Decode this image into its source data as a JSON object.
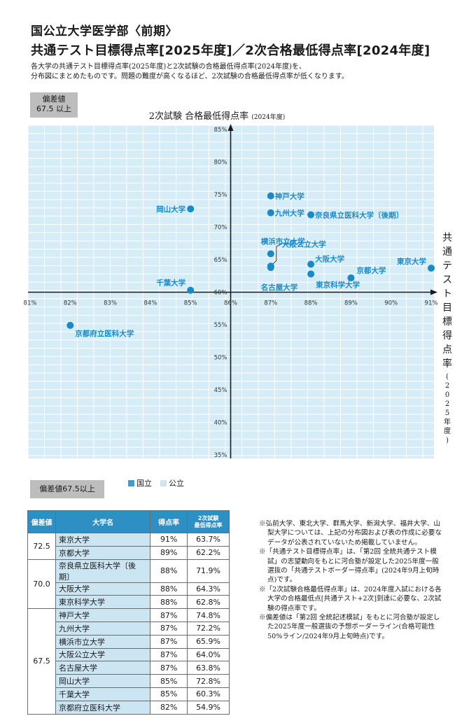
{
  "header": {
    "title1": "国公立大学医学部〈前期〉",
    "title2": "共通テスト目標得点率[2025年度]／2次合格最低得点率[2024年度]",
    "desc1": "各大学の共通テスト目標得点率(2025年度)と2次試験の合格最低得点率(2024年度)を、",
    "desc2": "分布図にまとめたものです。問題の難度が高くなるほど、2次試験の合格最低得点率が低くなります。"
  },
  "badge_top": [
    "偏差値",
    "67.5 以上"
  ],
  "badge_bottom": "偏差値67.5以上",
  "legend": {
    "national": "国立",
    "public": "公立"
  },
  "colors": {
    "accent": "#1a8ac6",
    "plot_bg": "#d6edf8",
    "grid": "#ffffff",
    "national_swatch": "#3a9fd6",
    "public_swatch": "#cce5f3",
    "table_header": "#2e8fc4"
  },
  "chart_data": {
    "type": "scatter",
    "title": "2次試験 合格最低得点率",
    "title_sub": "(2024年度)",
    "ylabel": "共通テスト目標得点率",
    "ylabel_sub": "(2025年度)",
    "xlim": [
      81,
      91
    ],
    "ylim": [
      35,
      85
    ],
    "x_ticks": [
      "81%",
      "82%",
      "83%",
      "84%",
      "85%",
      "86%",
      "87%",
      "88%",
      "89%",
      "90%",
      "91%"
    ],
    "y_ticks": [
      "85%",
      "80%",
      "75%",
      "70%",
      "65%",
      "60%",
      "55%",
      "50%",
      "45%",
      "40%",
      "35%"
    ],
    "grid": true,
    "points": [
      {
        "label": "東京大学",
        "x": 91,
        "y": 63.7
      },
      {
        "label": "京都大学",
        "x": 89,
        "y": 62.2
      },
      {
        "label": "奈良県立医科大学〔後期〕",
        "x": 88,
        "y": 71.9
      },
      {
        "label": "大阪大学",
        "x": 88,
        "y": 64.3
      },
      {
        "label": "東京科学大学",
        "x": 88,
        "y": 62.8
      },
      {
        "label": "神戸大学",
        "x": 87,
        "y": 74.8
      },
      {
        "label": "九州大学",
        "x": 87,
        "y": 72.2
      },
      {
        "label": "横浜市立大学",
        "x": 87,
        "y": 65.9
      },
      {
        "label": "大阪公立大学",
        "x": 87,
        "y": 64.0
      },
      {
        "label": "名古屋大学",
        "x": 87,
        "y": 63.8
      },
      {
        "label": "岡山大学",
        "x": 85,
        "y": 72.8
      },
      {
        "label": "千葉大学",
        "x": 85,
        "y": 60.3
      },
      {
        "label": "京都府立医科大学",
        "x": 82,
        "y": 54.9
      }
    ]
  },
  "table": {
    "headers": {
      "dev": "偏差値",
      "name": "大学名",
      "score": "得点率",
      "second1": "2次試験",
      "second2": "最低得点率"
    },
    "groups": [
      {
        "dev": "72.5",
        "rows": [
          {
            "name": "東京大学",
            "score": "91%",
            "second": "63.7%"
          },
          {
            "name": "京都大学",
            "score": "89%",
            "second": "62.2%"
          }
        ]
      },
      {
        "dev": "70.0",
        "rows": [
          {
            "name": "奈良県立医科大学〔後期〕",
            "score": "88%",
            "second": "71.9%"
          },
          {
            "name": "大阪大学",
            "score": "88%",
            "second": "64.3%"
          },
          {
            "name": "東京科学大学",
            "score": "88%",
            "second": "62.8%"
          }
        ]
      },
      {
        "dev": "67.5",
        "rows": [
          {
            "name": "神戸大学",
            "score": "87%",
            "second": "74.8%"
          },
          {
            "name": "九州大学",
            "score": "87%",
            "second": "72.2%"
          },
          {
            "name": "横浜市立大学",
            "score": "87%",
            "second": "65.9%"
          },
          {
            "name": "大阪公立大学",
            "score": "87%",
            "second": "64.0%"
          },
          {
            "name": "名古屋大学",
            "score": "87%",
            "second": "63.8%"
          },
          {
            "name": "岡山大学",
            "score": "85%",
            "second": "72.8%"
          },
          {
            "name": "千葉大学",
            "score": "85%",
            "second": "60.3%"
          },
          {
            "name": "京都府立医科大学",
            "score": "82%",
            "second": "54.9%"
          }
        ]
      }
    ]
  },
  "notes": [
    "※弘前大学、東北大学、群馬大学、新潟大学、福井大学、山梨大学については、上記の分布図および表の作成に必要なデータが公表されていないため掲載していません。",
    "※「共通テスト目標得点率」は、「第2回 全統共通テスト模試」の志望動向をもとに河合塾が設定した2025年度一般選抜の「共通テストボーダー得点率」(2024年9月上旬時点)です。",
    "※「2次試験合格最低得点率」は、2024年度入試における各大学の合格最低点[共通テスト+2次]到達に必要な、2次試験の得点率です。",
    "※偏差値は「第2回 全統記述模試」をもとに河合塾が設定した2025年度一般選抜の予想ボーダーライン(合格可能性50%ライン/2024年9月上旬時点)です。"
  ]
}
